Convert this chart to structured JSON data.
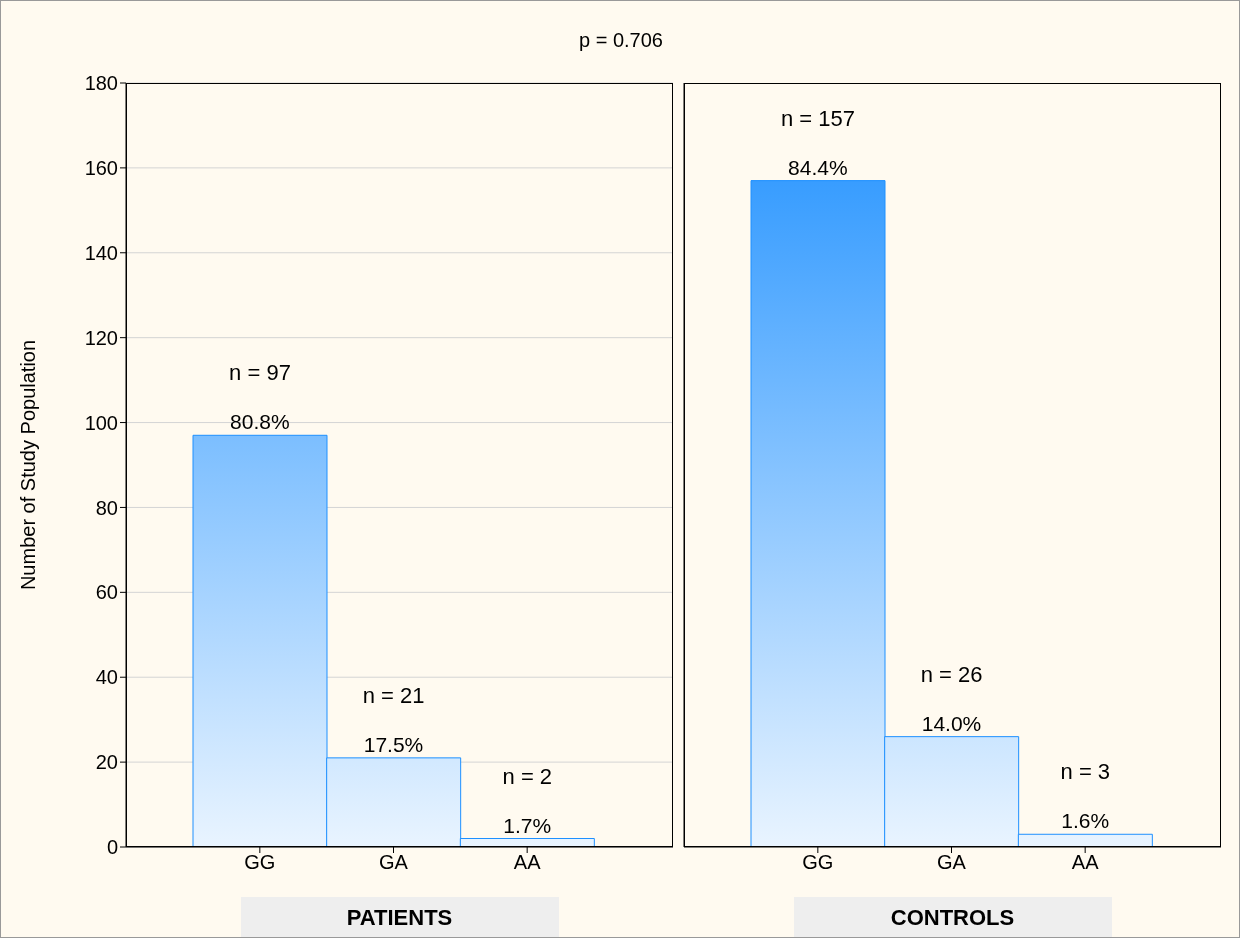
{
  "chart_data": [
    {
      "type": "bar",
      "title": "p = 0.706",
      "xlabel": "PATIENTS",
      "ylabel": "Number of Study Population",
      "categories": [
        "GG",
        "GA",
        "AA"
      ],
      "values": [
        97,
        21,
        2
      ],
      "color": "#1e90ff",
      "value_labels": [
        "n = 97",
        "n = 21",
        "n = 2"
      ],
      "annotations": [
        {
          "text": "80.8%",
          "x": "GG",
          "y": 97
        },
        {
          "text": "17.5%",
          "x": "GA",
          "y": 21
        },
        {
          "text": "1.7%",
          "x": "AA",
          "y": 2
        }
      ],
      "ylim": [
        0,
        180
      ],
      "yticks": [
        0,
        20,
        40,
        60,
        80,
        100,
        120,
        140,
        160,
        180
      ],
      "grid": "y"
    },
    {
      "type": "bar",
      "xlabel": "CONTROLS",
      "categories": [
        "GG",
        "GA",
        "AA"
      ],
      "values": [
        157,
        26,
        3
      ],
      "color": "#1e90ff",
      "value_labels": [
        "n = 157",
        "n = 26",
        "n = 3"
      ],
      "annotations": [
        {
          "text": "84.4%",
          "x": "GG",
          "y": 157
        },
        {
          "text": "14.0%",
          "x": "GA",
          "y": 26
        },
        {
          "text": "1.6%",
          "x": "AA",
          "y": 3
        }
      ],
      "ylim": [
        0,
        180
      ],
      "yticks": [
        0,
        20,
        40,
        60,
        80,
        100,
        120,
        140,
        160,
        180
      ],
      "grid": "y",
      "tick_labels": "x"
    }
  ]
}
